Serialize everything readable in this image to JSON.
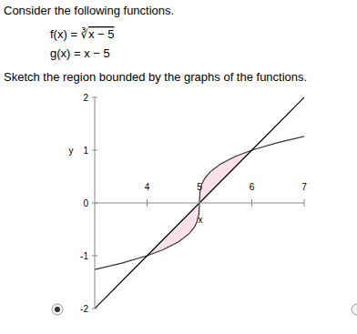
{
  "chart_data": {
    "type": "line",
    "title": "Consider the following functions.",
    "subtitle": "Sketch the region bounded by the graphs of the functions.",
    "x_label": "x",
    "y_label": "y",
    "series": [
      {
        "name": "f(x) = ∛x − 5",
        "color": "#333333",
        "x": [
          3,
          3.5,
          4,
          4.3,
          4.6,
          4.8,
          4.9,
          4.95,
          4.99,
          5,
          5.01,
          5.05,
          5.1,
          5.2,
          5.4,
          5.7,
          6,
          6.5,
          7
        ],
        "values": [
          -1.26,
          -1.145,
          -1,
          -0.888,
          -0.737,
          -0.585,
          -0.464,
          -0.368,
          -0.215,
          0,
          0.215,
          0.368,
          0.464,
          0.585,
          0.737,
          0.888,
          1,
          1.145,
          1.26
        ]
      },
      {
        "name": "g(x) = x − 5",
        "color": "#000000",
        "x": [
          3,
          4,
          5,
          6,
          7
        ],
        "values": [
          -2,
          -1,
          0,
          1,
          2
        ]
      }
    ],
    "region": {
      "x": [
        4,
        6
      ],
      "color": "#fbe0ea"
    },
    "xlim": [
      3,
      7
    ],
    "ylim": [
      -2,
      2
    ],
    "xticks": [
      4,
      5,
      6,
      7
    ],
    "yticks": [
      2,
      1,
      0,
      -1,
      -2
    ]
  }
}
